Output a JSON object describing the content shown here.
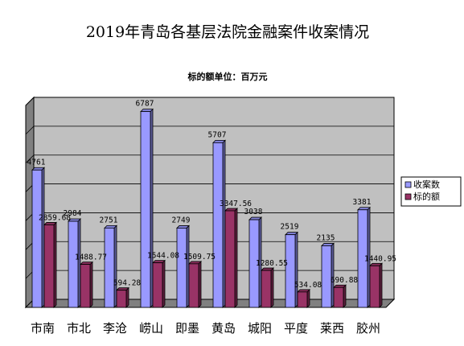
{
  "chart_data": {
    "type": "bar",
    "title": "2019年青岛各基层法院金融案件收案情况",
    "subtitle": "标的额单位：百万元",
    "categories": [
      "市南",
      "市北",
      "李沧",
      "崂山",
      "即墨",
      "黄岛",
      "城阳",
      "平度",
      "莱西",
      "胶州"
    ],
    "series": [
      {
        "name": "收案数",
        "color": "#9999ff",
        "values": [
          4761,
          2984,
          2751,
          6787,
          2749,
          5707,
          3038,
          2519,
          2135,
          3381
        ],
        "labels": [
          "4761",
          "2984",
          "2751",
          "6787",
          "2749",
          "5707",
          "3038",
          "2519",
          "2135",
          "3381"
        ]
      },
      {
        "name": "标的额",
        "color": "#993366",
        "values": [
          2859.68,
          1488.77,
          594.28,
          1544.08,
          1509.75,
          3347.56,
          1280.55,
          534.08,
          690.88,
          1440.95
        ],
        "labels": [
          "2859.68",
          "1488.77",
          "594.28",
          "1544.08",
          "1509.75",
          "3347.56",
          "1280.55",
          "534.08",
          "690.88",
          "1440.95"
        ]
      }
    ],
    "ylim": [
      0,
      7000
    ],
    "grid": true,
    "legend_position": "right"
  }
}
